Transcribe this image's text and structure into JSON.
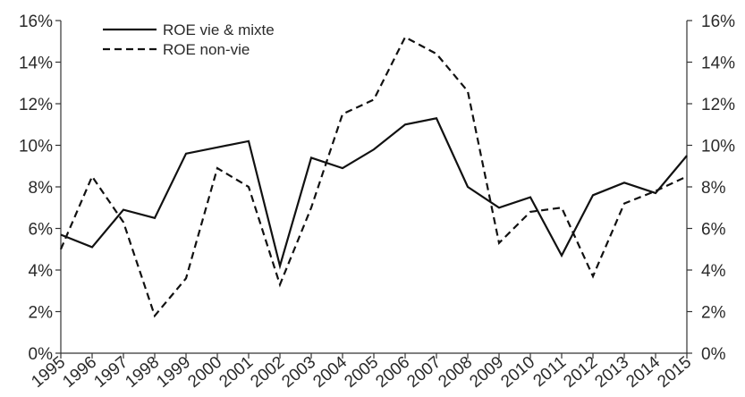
{
  "chart_data": {
    "type": "line",
    "categories": [
      "1995",
      "1996",
      "1997",
      "1998",
      "1999",
      "2000",
      "2001",
      "2002",
      "2003",
      "2004",
      "2005",
      "2006",
      "2007",
      "2008",
      "2009",
      "2010",
      "2011",
      "2012",
      "2013",
      "2014",
      "2015"
    ],
    "series": [
      {
        "name": "ROE vie & mixte",
        "color": "#111111",
        "dash": false,
        "values": [
          5.7,
          5.1,
          6.9,
          6.5,
          9.6,
          9.9,
          10.2,
          4.2,
          9.4,
          8.9,
          9.8,
          11.0,
          11.3,
          8.0,
          7.0,
          7.5,
          4.7,
          7.6,
          8.2,
          7.7,
          9.5
        ]
      },
      {
        "name": "ROE non-vie",
        "color": "#111111",
        "dash": true,
        "values": [
          5.0,
          8.5,
          6.3,
          1.8,
          3.6,
          8.9,
          8.0,
          3.3,
          7.0,
          11.5,
          12.2,
          15.2,
          14.4,
          12.6,
          5.3,
          6.8,
          7.0,
          3.7,
          7.2,
          7.8,
          8.5
        ]
      }
    ],
    "ylim": [
      0,
      16
    ],
    "yticks": [
      {
        "value": 0,
        "label": "0%"
      },
      {
        "value": 2,
        "label": "2%"
      },
      {
        "value": 4,
        "label": "4%"
      },
      {
        "value": 6,
        "label": "6%"
      },
      {
        "value": 8,
        "label": "8%"
      },
      {
        "value": 10,
        "label": "10%"
      },
      {
        "value": 12,
        "label": "12%"
      },
      {
        "value": 14,
        "label": "14%"
      },
      {
        "value": 16,
        "label": "16%"
      }
    ],
    "y2lim": [
      0,
      16
    ],
    "y2ticks": [
      {
        "value": 0,
        "label": "0%"
      },
      {
        "value": 2,
        "label": "2%"
      },
      {
        "value": 4,
        "label": "4%"
      },
      {
        "value": 6,
        "label": "6%"
      },
      {
        "value": 8,
        "label": "8%"
      },
      {
        "value": 10,
        "label": "10%"
      },
      {
        "value": 12,
        "label": "12%"
      },
      {
        "value": 14,
        "label": "14%"
      },
      {
        "value": 16,
        "label": "16%"
      }
    ],
    "grid": false,
    "legend": "upper left"
  }
}
